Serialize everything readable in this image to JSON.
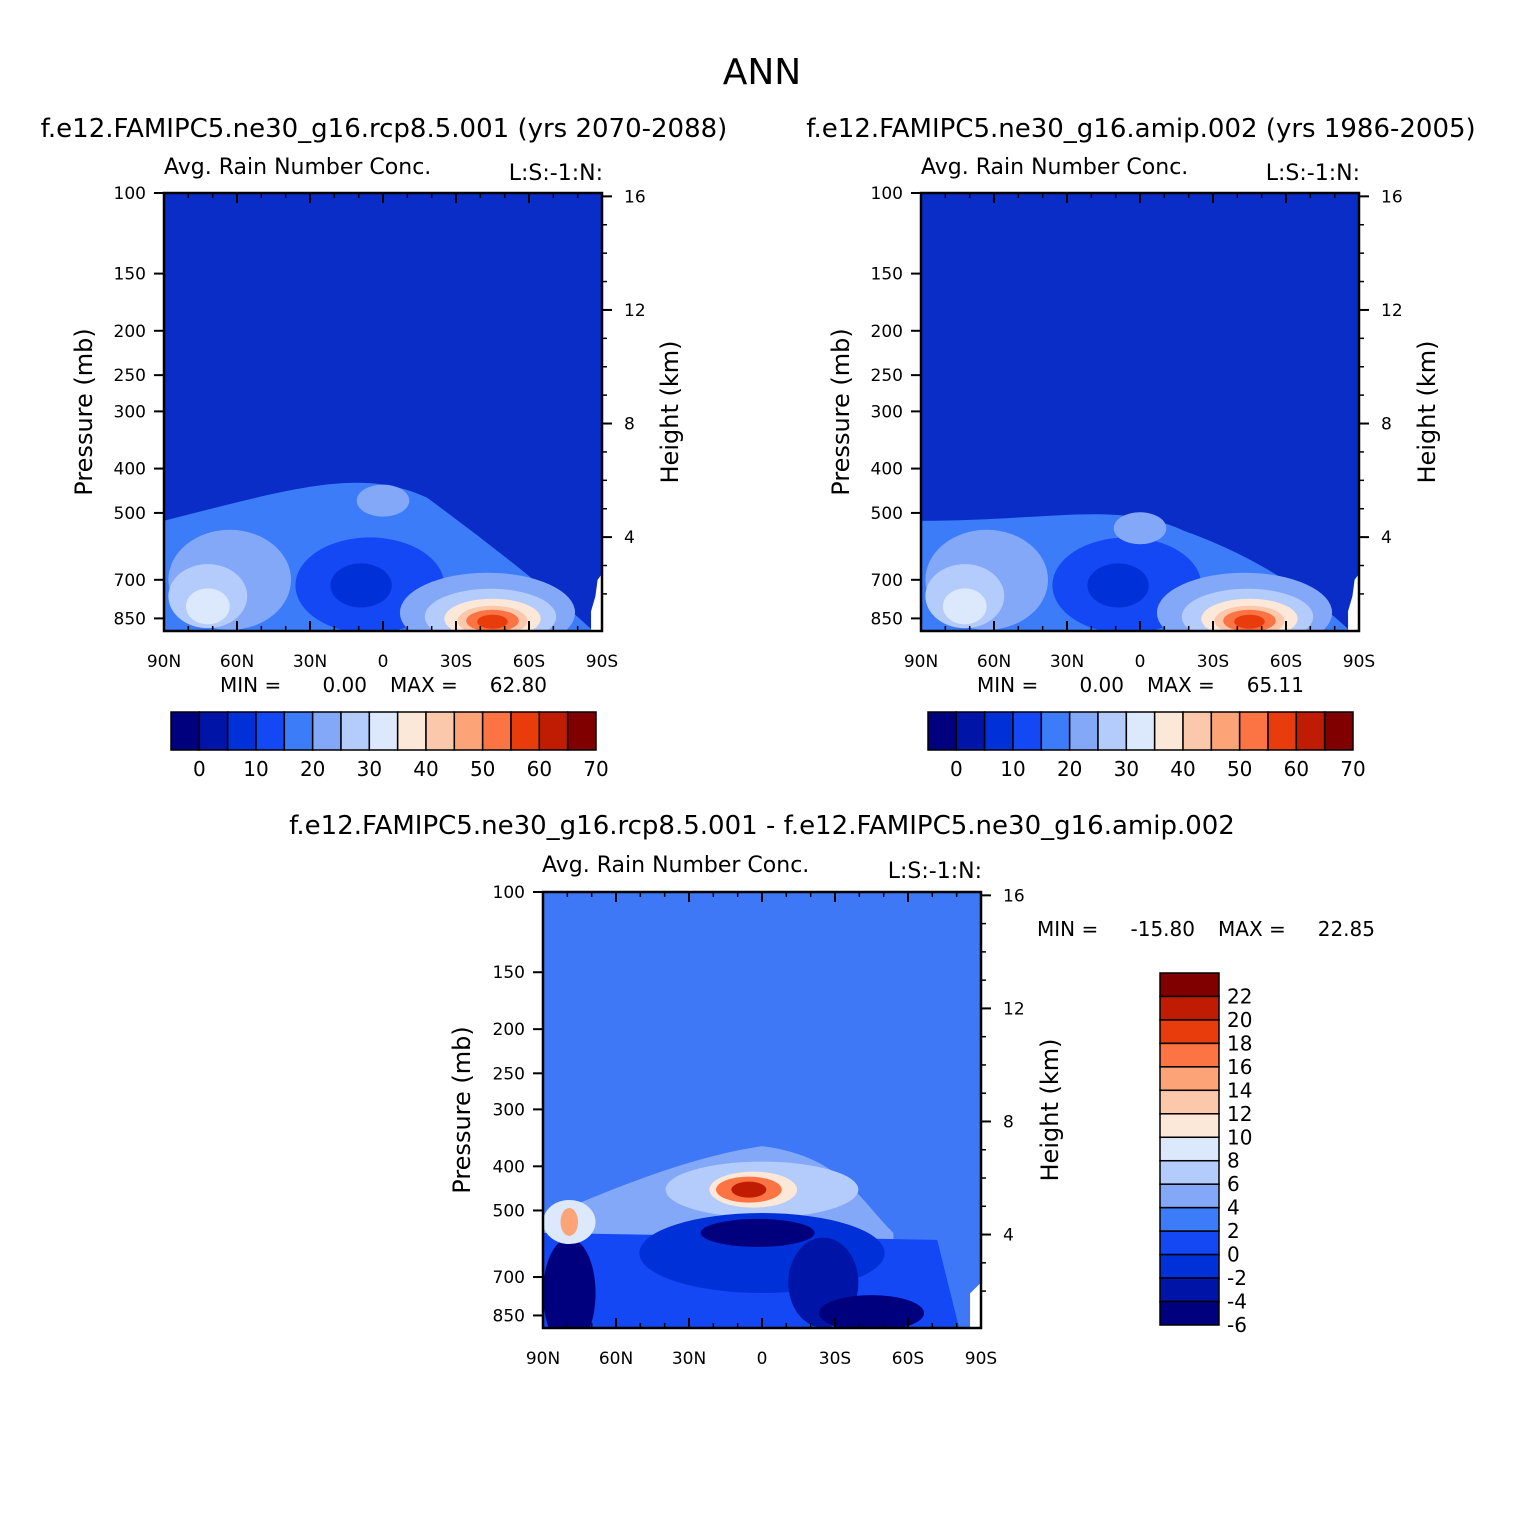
{
  "page": {
    "title": "ANN"
  },
  "colors": {
    "abs_scale": [
      "#00007f",
      "#0014a8",
      "#0030d8",
      "#1448f4",
      "#3c7cf8",
      "#84a8f8",
      "#b4ccfc",
      "#dce8fc",
      "#fce8d8",
      "#fcc8ac",
      "#fca478",
      "#fc7444",
      "#e83c0c",
      "#c01c04",
      "#800000"
    ],
    "diff_scale": [
      "#00007f",
      "#0014a8",
      "#0030d8",
      "#1448f4",
      "#3c7cf8",
      "#84a8f8",
      "#b4ccfc",
      "#dce8fc",
      "#fce8d8",
      "#fcc8ac",
      "#fca478",
      "#fc7444",
      "#e83c0c",
      "#c01c04",
      "#800000"
    ],
    "background_fill_abs": "#0a2dc8",
    "background_fill_diff": "#3e78f6"
  },
  "chart_data": [
    {
      "type": "heatmap",
      "case_title": "f.e12.FAMIPC5.ne30_g16.rcp8.5.001 (yrs 2070-2088)",
      "title": "Avg. Rain Number Conc.",
      "subtitle_right": "L:S:-1:N:",
      "ylabel": "Pressure (mb)",
      "ylabel_right": "Height (km)",
      "x_ticks": [
        "90N",
        "60N",
        "30N",
        "0",
        "30S",
        "60S",
        "90S"
      ],
      "y_ticks": [
        "100",
        "150",
        "200",
        "250",
        "300",
        "400",
        "500",
        "700",
        "850"
      ],
      "y_right_ticks": [
        "16",
        "12",
        "8",
        "4"
      ],
      "stats": {
        "min_label": "MIN =",
        "min": "0.00",
        "max_label": "MAX =",
        "max": "62.80"
      },
      "colorbar": {
        "orientation": "horizontal",
        "labels": [
          "0",
          "10",
          "20",
          "30",
          "40",
          "50",
          "60",
          "70"
        ]
      },
      "features": [
        {
          "lat": -45,
          "p": 860,
          "value": 62.8
        },
        {
          "lat": 0,
          "p": 460,
          "value": 22
        },
        {
          "lat": 80,
          "p": 840,
          "value": 32
        }
      ]
    },
    {
      "type": "heatmap",
      "case_title": "f.e12.FAMIPC5.ne30_g16.amip.002 (yrs 1986-2005)",
      "title": "Avg. Rain Number Conc.",
      "subtitle_right": "L:S:-1:N:",
      "ylabel": "Pressure (mb)",
      "ylabel_right": "Height (km)",
      "x_ticks": [
        "90N",
        "60N",
        "30N",
        "0",
        "30S",
        "60S",
        "90S"
      ],
      "y_ticks": [
        "100",
        "150",
        "200",
        "250",
        "300",
        "400",
        "500",
        "700",
        "850"
      ],
      "y_right_ticks": [
        "16",
        "12",
        "8",
        "4"
      ],
      "stats": {
        "min_label": "MIN =",
        "min": "0.00",
        "max_label": "MAX =",
        "max": "65.11"
      },
      "colorbar": {
        "orientation": "horizontal",
        "labels": [
          "0",
          "10",
          "20",
          "30",
          "40",
          "50",
          "60",
          "70"
        ]
      },
      "features": [
        {
          "lat": -45,
          "p": 860,
          "value": 65.11
        },
        {
          "lat": 0,
          "p": 540,
          "value": 18
        },
        {
          "lat": 85,
          "p": 800,
          "value": 36
        }
      ]
    },
    {
      "type": "heatmap",
      "case_title": "f.e12.FAMIPC5.ne30_g16.rcp8.5.001 - f.e12.FAMIPC5.ne30_g16.amip.002",
      "title": "Avg. Rain Number Conc.",
      "subtitle_right": "L:S:-1:N:",
      "ylabel": "Pressure (mb)",
      "ylabel_right": "Height (km)",
      "x_ticks": [
        "90N",
        "60N",
        "30N",
        "0",
        "30S",
        "60S",
        "90S"
      ],
      "y_ticks": [
        "100",
        "150",
        "200",
        "250",
        "300",
        "400",
        "500",
        "700",
        "850"
      ],
      "y_right_ticks": [
        "16",
        "12",
        "8",
        "4"
      ],
      "stats": {
        "min_label": "MIN =",
        "min": "-15.80",
        "max_label": "MAX =",
        "max": "22.85"
      },
      "colorbar": {
        "orientation": "vertical",
        "labels": [
          "22",
          "20",
          "18",
          "16",
          "14",
          "12",
          "10",
          "8",
          "6",
          "4",
          "2",
          "0",
          "-2",
          "-4",
          "-6"
        ]
      },
      "features": [
        {
          "lat": 5,
          "p": 450,
          "value": 22.85
        },
        {
          "lat": 85,
          "p": 540,
          "value": 12
        },
        {
          "lat": 0,
          "p": 600,
          "value": -10
        },
        {
          "lat": -25,
          "p": 780,
          "value": -15.8
        }
      ]
    }
  ]
}
